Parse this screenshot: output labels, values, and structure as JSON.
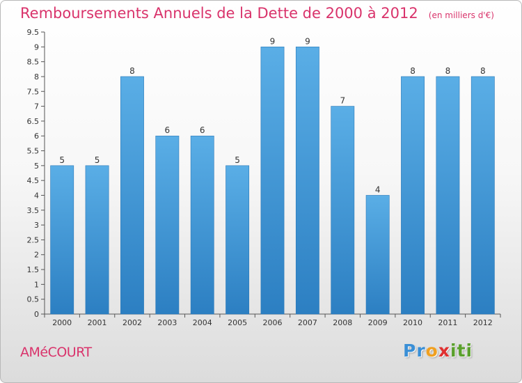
{
  "title": "Remboursements Annuels de la Dette de 2000 à 2012",
  "unit": "(en milliers d'€)",
  "commune": "AMéCOURT",
  "logo": {
    "letters": [
      {
        "ch": "P",
        "color": "#3a8fd6"
      },
      {
        "ch": "r",
        "color": "#3a8fd6"
      },
      {
        "ch": "o",
        "color": "#f0a020"
      },
      {
        "ch": "x",
        "color": "#e03030"
      },
      {
        "ch": "i",
        "color": "#5aa02c"
      },
      {
        "ch": "t",
        "color": "#5aa02c"
      },
      {
        "ch": "i",
        "color": "#5aa02c"
      }
    ]
  },
  "colors": {
    "bar_top": "#5aaee6",
    "bar_bottom": "#2c7fc2",
    "title": "#d9336b"
  },
  "chart_data": {
    "type": "bar",
    "title": "Remboursements Annuels de la Dette de 2000 à 2012",
    "unit": "(en milliers d'€)",
    "categories": [
      "2000",
      "2001",
      "2002",
      "2003",
      "2004",
      "2005",
      "2006",
      "2007",
      "2008",
      "2009",
      "2010",
      "2011",
      "2012"
    ],
    "values": [
      5,
      5,
      8,
      6,
      6,
      5,
      9,
      9,
      7,
      4,
      8,
      8,
      8
    ],
    "data_labels": [
      "5",
      "5",
      "8",
      "6",
      "6",
      "5",
      "9",
      "9",
      "7",
      "4",
      "8",
      "8",
      "8"
    ],
    "ylim": [
      0,
      9.5
    ],
    "yticks": [
      0,
      0.5,
      1,
      1.5,
      2,
      2.5,
      3,
      3.5,
      4,
      4.5,
      5,
      5.5,
      6,
      6.5,
      7,
      7.5,
      8,
      8.5,
      9,
      9.5
    ],
    "ytick_labels": [
      "0",
      "0.5",
      "1",
      "1.5",
      "2",
      "2.5",
      "3",
      "3.5",
      "4",
      "4.5",
      "5",
      "5.5",
      "6",
      "6.5",
      "7",
      "7.5",
      "8",
      "8.5",
      "9",
      "9.5"
    ],
    "xlabel": "",
    "ylabel": "",
    "grid": false,
    "legend": "none"
  }
}
